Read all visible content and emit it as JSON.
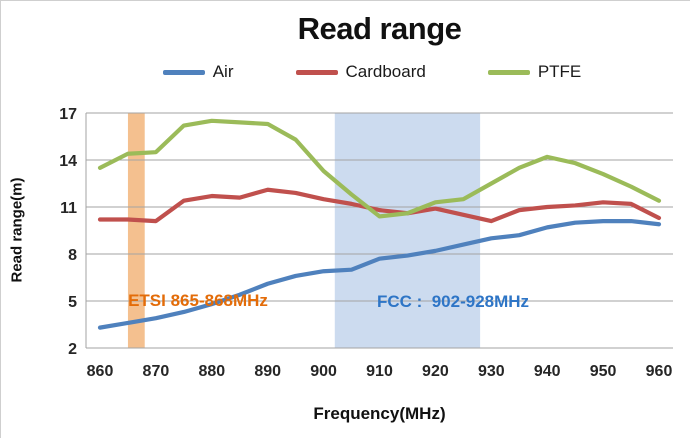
{
  "title": "Read range",
  "annotations": {
    "etsi": {
      "label": "ETSI 865-868MHz",
      "band_start": 865,
      "band_end": 868,
      "band_color": "#F4C08F",
      "text_color": "#E36C09"
    },
    "fcc": {
      "label": "FCC :  902-928MHz",
      "band_start": 902,
      "band_end": 928,
      "band_color": "#CCDBEF",
      "text_color": "#2E75C6"
    }
  },
  "colors": {
    "grid": "#A3A3A3",
    "axis_line": "#A3A3A3",
    "tick_text": "#262626",
    "title_text": "#111111",
    "background": "#FFFFFF"
  },
  "chart_data": {
    "type": "line",
    "title": "Read range",
    "xlabel": "Frequency(MHz)",
    "ylabel": "Read range(m)",
    "x": [
      860,
      865,
      870,
      875,
      880,
      885,
      890,
      895,
      900,
      905,
      910,
      915,
      920,
      925,
      930,
      935,
      940,
      945,
      950,
      955,
      960
    ],
    "xticks": [
      860,
      870,
      880,
      890,
      900,
      910,
      920,
      930,
      940,
      950,
      960
    ],
    "yticks": [
      2,
      5,
      8,
      11,
      14,
      17
    ],
    "ylim": [
      2,
      17
    ],
    "xlim": [
      860,
      960
    ],
    "grid": true,
    "legend_position": "top",
    "series": [
      {
        "name": "Air",
        "color": "#4F81BD",
        "values": [
          3.3,
          3.6,
          3.9,
          4.3,
          4.8,
          5.4,
          6.1,
          6.6,
          6.9,
          7.0,
          7.7,
          7.9,
          8.2,
          8.6,
          9.0,
          9.2,
          9.7,
          10.0,
          10.1,
          10.1,
          9.9
        ]
      },
      {
        "name": "Cardboard",
        "color": "#C0504D",
        "values": [
          10.2,
          10.2,
          10.1,
          11.4,
          11.7,
          11.6,
          12.1,
          11.9,
          11.5,
          11.2,
          10.8,
          10.6,
          10.9,
          10.5,
          10.1,
          10.8,
          11.0,
          11.1,
          11.3,
          11.2,
          10.3
        ]
      },
      {
        "name": "PTFE",
        "color": "#9BBB59",
        "values": [
          13.5,
          14.4,
          14.5,
          16.2,
          16.5,
          16.4,
          16.3,
          15.3,
          13.3,
          11.8,
          10.4,
          10.6,
          11.3,
          11.5,
          12.5,
          13.5,
          14.2,
          13.8,
          13.1,
          12.3,
          11.4
        ]
      }
    ]
  }
}
